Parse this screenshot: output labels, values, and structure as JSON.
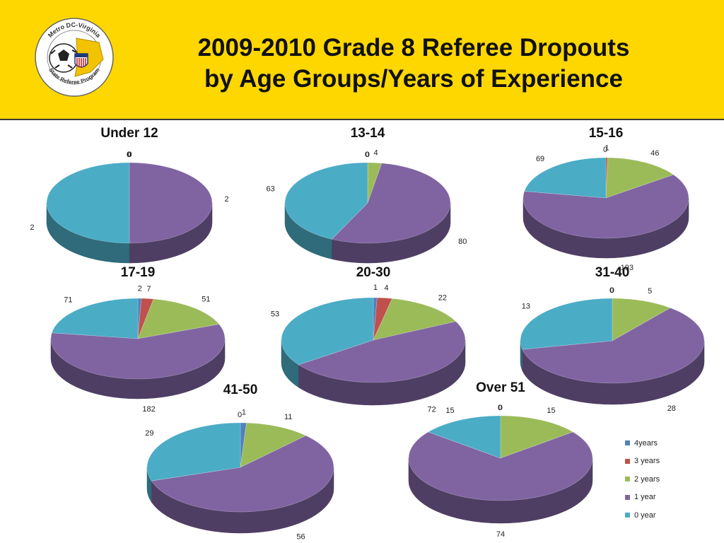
{
  "header": {
    "title_line1": "2009-2010 Grade 8 Referee Dropouts",
    "title_line2": "by Age Groups/Years of Experience",
    "logo_text_top": "Metro DC-Virginia",
    "logo_text_bottom": "State Referee Program"
  },
  "colors": {
    "header_bg": "#FFD700",
    "4years": "#4F81BD",
    "3 years": "#C0504D",
    "2 years": "#9BBB59",
    "1 year": "#8064A2",
    "0 year": "#4BACC6"
  },
  "chart_data": [
    {
      "type": "pie",
      "title": "Under 12",
      "categories": [
        "4years",
        "3 years",
        "2 years",
        "1 year",
        "0 year"
      ],
      "values": [
        0,
        0,
        0,
        2,
        2
      ]
    },
    {
      "type": "pie",
      "title": "13-14",
      "categories": [
        "4years",
        "3 years",
        "2 years",
        "1 year",
        "0 year"
      ],
      "values": [
        0,
        0,
        4,
        80,
        63
      ]
    },
    {
      "type": "pie",
      "title": "15-16",
      "categories": [
        "4years",
        "3 years",
        "2 years",
        "1 year",
        "0 year"
      ],
      "values": [
        0,
        1,
        46,
        193,
        69
      ]
    },
    {
      "type": "pie",
      "title": "17-19",
      "categories": [
        "4years",
        "3 years",
        "2 years",
        "1 year",
        "0 year"
      ],
      "values": [
        2,
        7,
        51,
        182,
        71
      ]
    },
    {
      "type": "pie",
      "title": "20-30",
      "categories": [
        "4years",
        "3 years",
        "2 years",
        "1 year",
        "0 year"
      ],
      "values": [
        1,
        4,
        22,
        72,
        53
      ]
    },
    {
      "type": "pie",
      "title": "31-40",
      "categories": [
        "4years",
        "3 years",
        "2 years",
        "1 year",
        "0 year"
      ],
      "values": [
        0,
        0,
        5,
        28,
        13
      ]
    },
    {
      "type": "pie",
      "title": "41-50",
      "categories": [
        "4years",
        "3 years",
        "2 years",
        "1 year",
        "0 year"
      ],
      "values": [
        1,
        0,
        11,
        56,
        29
      ]
    },
    {
      "type": "pie",
      "title": "Over 51",
      "categories": [
        "4years",
        "3 years",
        "2 years",
        "1 year",
        "0 year"
      ],
      "values": [
        0,
        0,
        15,
        74,
        15
      ]
    }
  ],
  "legend": {
    "placement": "bottom-right",
    "items": [
      "4years",
      "3 years",
      "2 years",
      "1 year",
      "0 year"
    ]
  }
}
